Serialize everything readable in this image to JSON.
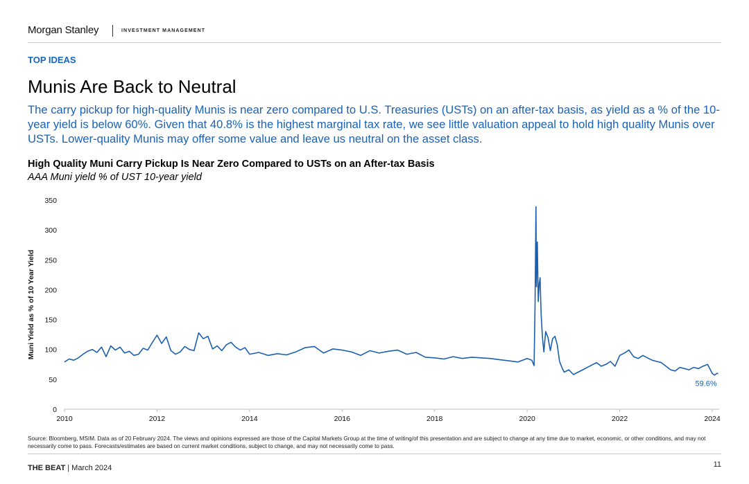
{
  "header": {
    "brand": "Morgan Stanley",
    "brand_sub": "INVESTMENT MANAGEMENT"
  },
  "kicker": "TOP IDEAS",
  "title": "Munis Are Back to Neutral",
  "lead": "The carry pickup for high-quality Munis is near zero compared to U.S. Treasuries (USTs) on an after-tax basis, as yield as a % of the 10-year yield is below 60%. Given that 40.8% is the highest marginal tax rate, we see little valuation appeal to hold high quality Munis over USTs. Lower-quality Munis may offer some value and leave us neutral on the asset class.",
  "chart_data": {
    "type": "line",
    "title": "High Quality Muni Carry Pickup Is Near Zero Compared to USTs on an After-tax Basis",
    "subtitle": "AAA Muni yield % of UST 10-year yield",
    "xlabel": "",
    "ylabel": "Muni Yield as % of 10 Year Yield",
    "xlim": [
      2010.0,
      2024.15
    ],
    "ylim": [
      0,
      350
    ],
    "yticks": [
      "0",
      "50",
      "100",
      "150",
      "200",
      "250",
      "300",
      "350"
    ],
    "xticks": [
      "2010",
      "2012",
      "2014",
      "2016",
      "2018",
      "2020",
      "2022",
      "2024"
    ],
    "grid": false,
    "line_color": "#1a5fb0",
    "annotation": {
      "text": "59.6%",
      "x": 2024.13,
      "y": 59.6
    },
    "series": [
      {
        "name": "AAA Muni yield % of UST 10-year yield",
        "x": [
          2010.0,
          2010.1,
          2010.2,
          2010.3,
          2010.4,
          2010.5,
          2010.6,
          2010.7,
          2010.8,
          2010.9,
          2011.0,
          2011.1,
          2011.2,
          2011.3,
          2011.4,
          2011.5,
          2011.6,
          2011.7,
          2011.8,
          2011.9,
          2012.0,
          2012.1,
          2012.2,
          2012.3,
          2012.4,
          2012.5,
          2012.6,
          2012.7,
          2012.8,
          2012.9,
          2013.0,
          2013.1,
          2013.2,
          2013.3,
          2013.4,
          2013.5,
          2013.6,
          2013.7,
          2013.8,
          2013.9,
          2014.0,
          2014.2,
          2014.4,
          2014.6,
          2014.8,
          2015.0,
          2015.2,
          2015.4,
          2015.6,
          2015.8,
          2016.0,
          2016.2,
          2016.4,
          2016.6,
          2016.8,
          2017.0,
          2017.2,
          2017.4,
          2017.6,
          2017.8,
          2018.0,
          2018.2,
          2018.4,
          2018.6,
          2018.8,
          2019.0,
          2019.2,
          2019.4,
          2019.6,
          2019.8,
          2020.0,
          2020.1,
          2020.15,
          2020.17,
          2020.19,
          2020.2,
          2020.22,
          2020.24,
          2020.26,
          2020.28,
          2020.3,
          2020.33,
          2020.36,
          2020.4,
          2020.45,
          2020.5,
          2020.55,
          2020.6,
          2020.65,
          2020.7,
          2020.75,
          2020.8,
          2020.9,
          2021.0,
          2021.1,
          2021.2,
          2021.3,
          2021.4,
          2021.5,
          2021.6,
          2021.7,
          2021.8,
          2021.9,
          2022.0,
          2022.1,
          2022.2,
          2022.3,
          2022.4,
          2022.5,
          2022.6,
          2022.7,
          2022.8,
          2022.9,
          2023.0,
          2023.1,
          2023.2,
          2023.3,
          2023.4,
          2023.5,
          2023.6,
          2023.7,
          2023.8,
          2023.9,
          2024.0,
          2024.05,
          2024.1,
          2024.13
        ],
        "values": [
          79,
          84,
          82,
          86,
          92,
          97,
          100,
          95,
          104,
          88,
          106,
          99,
          104,
          94,
          97,
          90,
          92,
          102,
          99,
          112,
          124,
          110,
          121,
          98,
          92,
          96,
          105,
          100,
          98,
          128,
          118,
          122,
          101,
          106,
          98,
          108,
          112,
          104,
          99,
          103,
          92,
          95,
          90,
          93,
          91,
          96,
          103,
          105,
          94,
          101,
          99,
          96,
          90,
          98,
          94,
          97,
          99,
          92,
          95,
          87,
          86,
          84,
          88,
          85,
          87,
          86,
          85,
          83,
          81,
          79,
          85,
          82,
          73,
          175,
          339,
          205,
          280,
          180,
          210,
          220,
          160,
          120,
          96,
          130,
          120,
          98,
          118,
          122,
          108,
          80,
          70,
          62,
          66,
          58,
          62,
          66,
          70,
          74,
          78,
          72,
          75,
          80,
          72,
          90,
          94,
          99,
          88,
          85,
          90,
          86,
          82,
          80,
          78,
          72,
          66,
          64,
          70,
          68,
          66,
          70,
          68,
          72,
          75,
          60,
          57,
          60,
          59.6
        ]
      }
    ]
  },
  "source": "Source: Bloomberg, MSIM. Data as of 20 February 2024. The views and opinions expressed are those of the Capital Markets Group at the time of writing/of this presentation and are subject to change at any time due to market, economic, or other conditions, and may not necessarily come to pass. Forecasts/estimates are based on current market conditions, subject to change, and may not necessarily come to pass.",
  "footer": {
    "publication": "THE BEAT",
    "separator": " | ",
    "date": "March 2024",
    "page": "11"
  }
}
